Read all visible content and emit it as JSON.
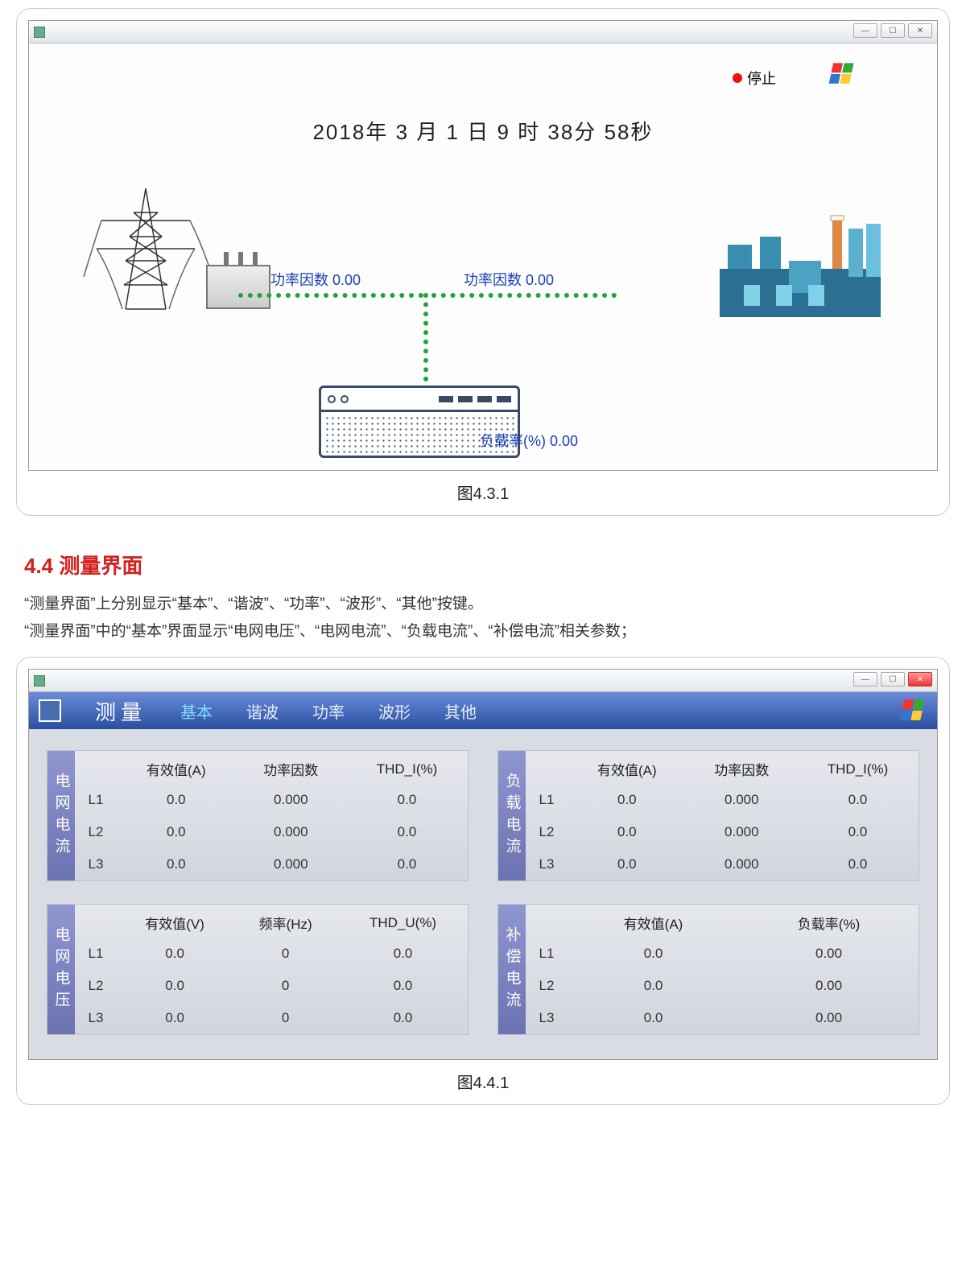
{
  "fig431": {
    "status_text": "停止",
    "status_color": "#e11111",
    "datetime_parts": {
      "year": "2018",
      "m": "3",
      "d": "1",
      "h": "9",
      "min": "38",
      "sec": "58"
    },
    "datetime_labels": {
      "y": "年",
      "m": "月",
      "d": "日",
      "h": "时",
      "min": "分",
      "sec": "秒"
    },
    "pf_label": "功率因数",
    "pf1_val": "0.00",
    "pf2_val": "0.00",
    "load_label": "负载率(%)",
    "load_val": "0.00",
    "dash_color": "#1fa63a",
    "caption": "图4.3.1"
  },
  "section": {
    "heading": "4.4 测量界面",
    "p1": "“测量界面”上分别显示“基本”、“谐波”、“功率”、“波形”、“其他”按键。",
    "p2": "“测量界面”中的“基本”界面显示“电网电压”、“电网电流”、“负载电流”、“补偿电流”相关参数；"
  },
  "fig441": {
    "title": "测量",
    "tabs": [
      "基本",
      "谐波",
      "功率",
      "波形",
      "其他"
    ],
    "active_tab_index": 0,
    "panels": [
      {
        "name": "电网电流",
        "headers": [
          "",
          "有效值(A)",
          "功率因数",
          "THD_I(%)"
        ],
        "rows": [
          [
            "L1",
            "0.0",
            "0.000",
            "0.0"
          ],
          [
            "L2",
            "0.0",
            "0.000",
            "0.0"
          ],
          [
            "L3",
            "0.0",
            "0.000",
            "0.0"
          ]
        ]
      },
      {
        "name": "负载电流",
        "headers": [
          "",
          "有效值(A)",
          "功率因数",
          "THD_I(%)"
        ],
        "rows": [
          [
            "L1",
            "0.0",
            "0.000",
            "0.0"
          ],
          [
            "L2",
            "0.0",
            "0.000",
            "0.0"
          ],
          [
            "L3",
            "0.0",
            "0.000",
            "0.0"
          ]
        ]
      },
      {
        "name": "电网电压",
        "headers": [
          "",
          "有效值(V)",
          "频率(Hz)",
          "THD_U(%)"
        ],
        "rows": [
          [
            "L1",
            "0.0",
            "0",
            "0.0"
          ],
          [
            "L2",
            "0.0",
            "0",
            "0.0"
          ],
          [
            "L3",
            "0.0",
            "0",
            "0.0"
          ]
        ]
      },
      {
        "name": "补偿电流",
        "headers": [
          "",
          "有效值(A)",
          "负载率(%)"
        ],
        "rows": [
          [
            "L1",
            "0.0",
            "0.00"
          ],
          [
            "L2",
            "0.0",
            "0.00"
          ],
          [
            "L3",
            "0.0",
            "0.00"
          ]
        ]
      }
    ],
    "caption": "图4.4.1",
    "colors": {
      "header_gradient_top": "#6a8cd8",
      "header_gradient_bottom": "#2a4fa0",
      "side_gradient_top": "#8f96d0",
      "side_gradient_bottom": "#6b72b0",
      "panel_bg": "#e0e3ea"
    }
  }
}
